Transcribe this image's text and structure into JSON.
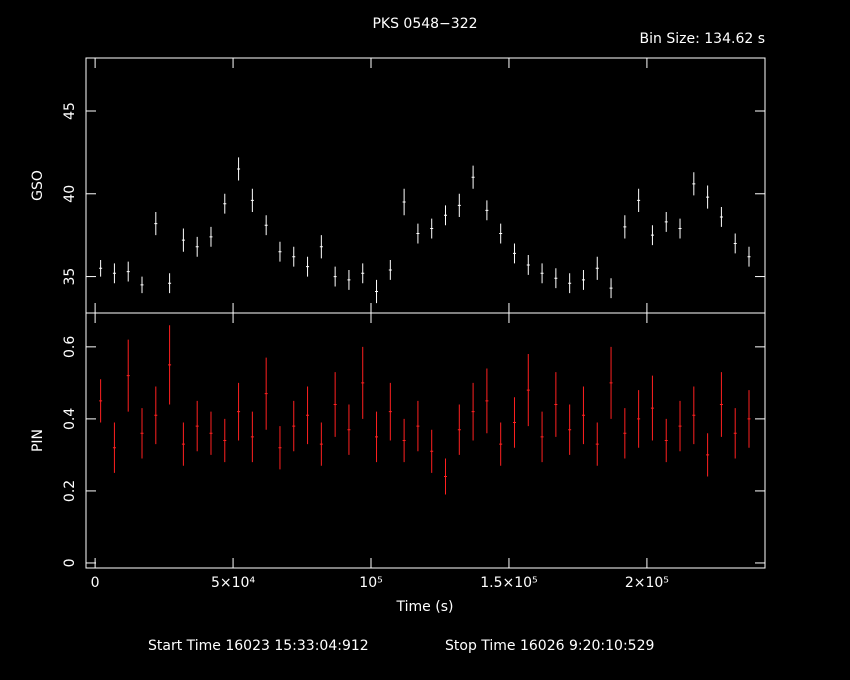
{
  "chart_data": [
    {
      "type": "errorbar",
      "title": "PKS 0548−322",
      "subtitle": "Bin Size: 134.62 s",
      "ylabel": "GSO",
      "color": "#ffffff",
      "x": [
        2000,
        7000,
        12000,
        17000,
        22000,
        27000,
        32000,
        37000,
        42000,
        47000,
        52000,
        57000,
        62000,
        67000,
        72000,
        77000,
        82000,
        87000,
        92000,
        97000,
        102000,
        107000,
        112000,
        117000,
        122000,
        127000,
        132000,
        137000,
        142000,
        147000,
        152000,
        157000,
        162000,
        167000,
        172000,
        177000,
        182000,
        187000,
        192000,
        197000,
        202000,
        207000,
        212000,
        217000,
        222000,
        227000,
        232000,
        237000
      ],
      "values": [
        35.5,
        35.2,
        35.3,
        34.5,
        38.2,
        34.6,
        37.2,
        36.8,
        37.4,
        39.4,
        41.5,
        39.6,
        38.1,
        36.5,
        36.2,
        35.6,
        36.8,
        35.0,
        34.8,
        35.2,
        34.1,
        35.4,
        39.5,
        37.6,
        37.9,
        38.7,
        39.3,
        41.0,
        39.0,
        37.6,
        36.4,
        35.7,
        35.2,
        34.9,
        34.6,
        34.8,
        35.5,
        34.3,
        38.0,
        39.6,
        37.5,
        38.3,
        37.9,
        40.6,
        39.8,
        38.6,
        37.0,
        36.2
      ],
      "errors": [
        0.5,
        0.6,
        0.6,
        0.5,
        0.7,
        0.6,
        0.7,
        0.6,
        0.6,
        0.6,
        0.7,
        0.7,
        0.6,
        0.6,
        0.6,
        0.6,
        0.7,
        0.6,
        0.6,
        0.6,
        0.7,
        0.6,
        0.8,
        0.6,
        0.6,
        0.6,
        0.7,
        0.7,
        0.6,
        0.6,
        0.6,
        0.6,
        0.6,
        0.6,
        0.6,
        0.6,
        0.7,
        0.6,
        0.7,
        0.7,
        0.6,
        0.6,
        0.6,
        0.7,
        0.7,
        0.6,
        0.6,
        0.6
      ],
      "xlim": [
        -3300,
        242800
      ],
      "ylim": [
        32.8,
        48.2
      ],
      "yticks": [
        35,
        40,
        45
      ]
    },
    {
      "type": "errorbar",
      "ylabel": "PIN",
      "xlabel": "Time (s)",
      "color": "#ff2020",
      "footer_start": "Start Time 16023 15:33:04:912",
      "footer_stop": "Stop Time 16026  9:20:10:529",
      "x": [
        2000,
        7000,
        12000,
        17000,
        22000,
        27000,
        32000,
        37000,
        42000,
        47000,
        52000,
        57000,
        62000,
        67000,
        72000,
        77000,
        82000,
        87000,
        92000,
        97000,
        102000,
        107000,
        112000,
        117000,
        122000,
        127000,
        132000,
        137000,
        142000,
        147000,
        152000,
        157000,
        162000,
        167000,
        172000,
        177000,
        182000,
        187000,
        192000,
        197000,
        202000,
        207000,
        212000,
        217000,
        222000,
        227000,
        232000,
        237000
      ],
      "values": [
        0.45,
        0.32,
        0.52,
        0.36,
        0.41,
        0.55,
        0.33,
        0.38,
        0.36,
        0.34,
        0.42,
        0.35,
        0.47,
        0.32,
        0.38,
        0.41,
        0.33,
        0.44,
        0.37,
        0.5,
        0.35,
        0.42,
        0.34,
        0.38,
        0.31,
        0.24,
        0.37,
        0.42,
        0.45,
        0.33,
        0.39,
        0.48,
        0.35,
        0.44,
        0.37,
        0.41,
        0.33,
        0.5,
        0.36,
        0.4,
        0.43,
        0.34,
        0.38,
        0.41,
        0.3,
        0.44,
        0.36,
        0.4
      ],
      "errors": [
        0.06,
        0.07,
        0.1,
        0.07,
        0.08,
        0.11,
        0.06,
        0.07,
        0.06,
        0.06,
        0.08,
        0.07,
        0.1,
        0.06,
        0.07,
        0.08,
        0.06,
        0.09,
        0.07,
        0.1,
        0.07,
        0.08,
        0.06,
        0.07,
        0.06,
        0.05,
        0.07,
        0.08,
        0.09,
        0.06,
        0.07,
        0.1,
        0.07,
        0.09,
        0.07,
        0.08,
        0.06,
        0.1,
        0.07,
        0.08,
        0.09,
        0.06,
        0.07,
        0.08,
        0.06,
        0.09,
        0.07,
        0.08
      ],
      "xlim": [
        -3300,
        242800
      ],
      "ylim": [
        -0.014,
        0.694
      ],
      "yticks": [
        0,
        0.2,
        0.4,
        0.6
      ],
      "xticks": [
        0,
        {
          "value": 50000,
          "label": "5×10⁴"
        },
        {
          "value": 100000,
          "label": "10⁵"
        },
        {
          "value": 150000,
          "label": "1.5×10⁵"
        },
        {
          "value": 200000,
          "label": "2×10⁵"
        }
      ]
    }
  ]
}
